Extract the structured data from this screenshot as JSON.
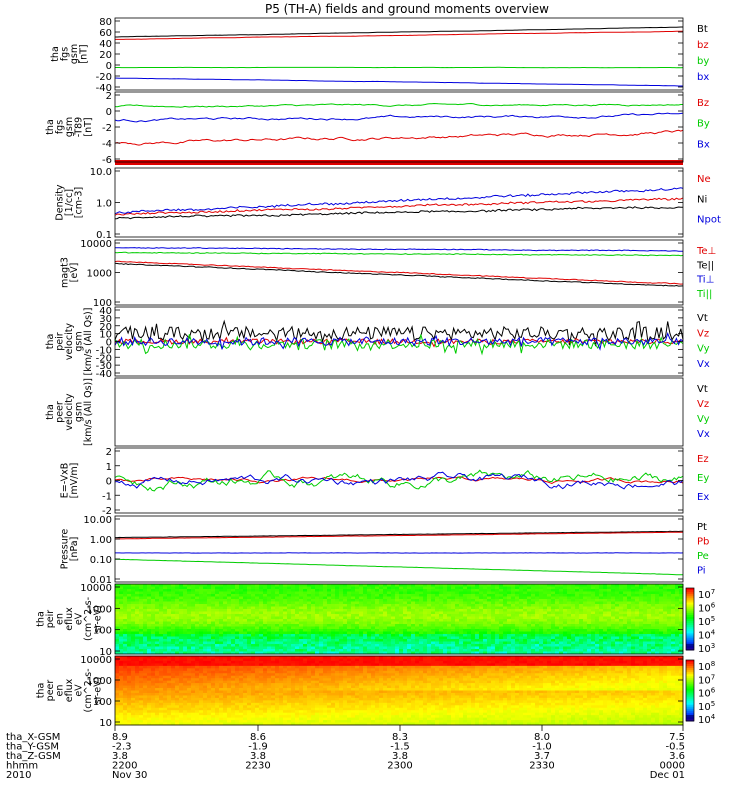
{
  "title": "P5 (TH-A) fields and ground moments overview",
  "colors": {
    "black": "#000000",
    "red": "#e00000",
    "green": "#00cc00",
    "blue": "#0000dd"
  },
  "chart_data": [
    {
      "id": "fgs",
      "type": "line",
      "ylabel": [
        "tha",
        "fgs",
        "gsm",
        "[nT]"
      ],
      "yticks": [
        "80",
        "60",
        "40",
        "20",
        "0",
        "-20",
        "-40"
      ],
      "ylim": [
        -40,
        85
      ],
      "series": [
        {
          "name": "Bt",
          "color": "black",
          "start": 52,
          "end": 69,
          "noise": 0.3
        },
        {
          "name": "bz",
          "color": "red",
          "start": 48,
          "end": 62,
          "noise": 0.3
        },
        {
          "name": "by",
          "color": "green",
          "start": -1,
          "end": -1,
          "noise": 0.2
        },
        {
          "name": "bx",
          "color": "blue",
          "start": -19,
          "end": -33,
          "noise": 0.3
        }
      ]
    },
    {
      "id": "fgs_dsc",
      "type": "line",
      "ylabel": [
        "tha",
        "fgs",
        "gsm",
        "-T89",
        "[nT]"
      ],
      "yticks": [
        "2",
        "0",
        "-2",
        "-4",
        "-6"
      ],
      "ylim": [
        -7,
        2.2
      ],
      "series": [
        {
          "name": "Bz",
          "color": "red",
          "start": -4.5,
          "end": -3,
          "noise": 0.25
        },
        {
          "name": "By",
          "color": "green",
          "start": 0.3,
          "end": 0.6,
          "noise": 0.15
        },
        {
          "name": "Bx",
          "color": "blue",
          "start": -1.5,
          "end": -0.8,
          "noise": 0.2
        }
      ]
    },
    {
      "id": "density",
      "type": "line",
      "ylabel": [
        "Density",
        "[1/cc]",
        "[cm-3]"
      ],
      "yticks": [
        "10.0",
        "1.0",
        "0.1"
      ],
      "scale": "log",
      "ylim": [
        0.1,
        10
      ],
      "series": [
        {
          "name": "Ne",
          "color": "red",
          "start": 0.45,
          "end": 1.3,
          "noise": 0.05
        },
        {
          "name": "Ni",
          "color": "black",
          "start": 0.35,
          "end": 0.75,
          "noise": 0.05
        },
        {
          "name": "Npot",
          "color": "blue",
          "start": 0.5,
          "end": 2.5,
          "noise": 0.06
        }
      ]
    },
    {
      "id": "temp",
      "type": "line",
      "ylabel": [
        "magt3",
        "[eV]"
      ],
      "yticks": [
        "10000",
        "1000",
        "100"
      ],
      "scale": "log",
      "ylim": [
        20,
        10000
      ],
      "series": [
        {
          "name": "Te⊥",
          "color": "red",
          "start": 1300,
          "end": 150,
          "noise": 0.03
        },
        {
          "name": "Te||",
          "color": "black",
          "start": 1050,
          "end": 120,
          "noise": 0.03
        },
        {
          "name": "Ti⊥",
          "color": "blue",
          "start": 4800,
          "end": 3500,
          "noise": 0.03
        },
        {
          "name": "Ti||",
          "color": "green",
          "start": 3000,
          "end": 2300,
          "noise": 0.03
        }
      ]
    },
    {
      "id": "peir_vel",
      "type": "line",
      "ylabel": [
        "tha",
        "peir",
        "velocity",
        "gsm",
        "[km/s (All Qs)]"
      ],
      "yticks": [
        "40",
        "30",
        "20",
        "10",
        "0",
        "-10",
        "-20",
        "-30",
        "-40"
      ],
      "ylim": [
        -42,
        42
      ],
      "series": [
        {
          "name": "Vt",
          "color": "black",
          "start": 10,
          "end": 10,
          "noise": 8
        },
        {
          "name": "Vz",
          "color": "red",
          "start": 0,
          "end": 0,
          "noise": 3
        },
        {
          "name": "Vy",
          "color": "green",
          "start": -3,
          "end": -3,
          "noise": 6
        },
        {
          "name": "Vx",
          "color": "blue",
          "start": 0,
          "end": 0,
          "noise": 5
        }
      ]
    },
    {
      "id": "peer_vel",
      "type": "line",
      "ylabel": [
        "tha",
        "peer",
        "velocity",
        "gsm",
        "[km/s (All Qs)]"
      ],
      "yticks": [],
      "ylim": [
        0,
        1
      ],
      "series": [
        {
          "name": "Vt",
          "color": "black"
        },
        {
          "name": "Vz",
          "color": "red"
        },
        {
          "name": "Vy",
          "color": "green"
        },
        {
          "name": "Vx",
          "color": "blue"
        }
      ]
    },
    {
      "id": "efield",
      "type": "line",
      "ylabel": [
        "E=-VxB",
        "[mV/m]"
      ],
      "yticks": [
        "2",
        "1",
        "0",
        "-1",
        "-2"
      ],
      "ylim": [
        -2.1,
        2.1
      ],
      "series": [
        {
          "name": "Ez",
          "color": "red",
          "start": 0,
          "end": 0,
          "noise": 0.15
        },
        {
          "name": "Ey",
          "color": "green",
          "start": 0,
          "end": 0,
          "noise": 0.45
        },
        {
          "name": "Ex",
          "color": "blue",
          "start": 0,
          "end": 0,
          "noise": 0.35
        }
      ]
    },
    {
      "id": "pressure",
      "type": "line",
      "ylabel": [
        "Pressure",
        "[nPa]"
      ],
      "yticks": [
        "10.00",
        "1.00",
        "0.10",
        "0.01"
      ],
      "scale": "log",
      "ylim": [
        0.008,
        12
      ],
      "series": [
        {
          "name": "Pt",
          "color": "black",
          "start": 1.1,
          "end": 2.2,
          "noise": 0.01
        },
        {
          "name": "Pb",
          "color": "red",
          "start": 0.95,
          "end": 2.0,
          "noise": 0.01
        },
        {
          "name": "Pe",
          "color": "green",
          "start": 0.1,
          "end": 0.018,
          "noise": 0.01
        },
        {
          "name": "Pi",
          "color": "blue",
          "start": 0.2,
          "end": 0.2,
          "noise": 0.01
        }
      ]
    },
    {
      "id": "peir_spec",
      "type": "heatmap",
      "ylabel": [
        "tha",
        "peir",
        "en",
        "eflux",
        "eV",
        "(cm^2-s-",
        "sr-eV)"
      ],
      "yticks": [
        "10000",
        "1000",
        "100",
        "10"
      ],
      "scale": "log",
      "ylim": [
        7,
        20000
      ],
      "colorbar": [
        "10^7",
        "10^6",
        "10^5",
        "10^4",
        "10^3"
      ]
    },
    {
      "id": "peer_spec",
      "type": "heatmap",
      "ylabel": [
        "tha",
        "peer",
        "en",
        "eflux",
        "eV",
        "(cm^2-s-",
        "sr-eV)"
      ],
      "yticks": [
        "10000",
        "1000",
        "100",
        "10"
      ],
      "scale": "log",
      "ylim": [
        7,
        20000
      ],
      "colorbar": [
        "10^8",
        "10^7",
        "10^6",
        "10^5",
        "10^4"
      ]
    }
  ],
  "xaxis": {
    "rows": [
      {
        "label": "tha_X-GSM",
        "values": [
          "8.9",
          "8.6",
          "8.3",
          "8.0",
          "7.5"
        ]
      },
      {
        "label": "tha_Y-GSM",
        "values": [
          "-2.3",
          "-1.9",
          "-1.5",
          "-1.0",
          "-0.5"
        ]
      },
      {
        "label": "tha_Z-GSM",
        "values": [
          "3.8",
          "3.8",
          "3.8",
          "3.7",
          "3.6"
        ]
      },
      {
        "label": "hhmm",
        "values": [
          "2200",
          "2230",
          "2300",
          "2330",
          "0000"
        ]
      },
      {
        "label": "2010",
        "values": [
          "Nov 30",
          "",
          "",
          "",
          "Dec 01"
        ]
      }
    ]
  }
}
